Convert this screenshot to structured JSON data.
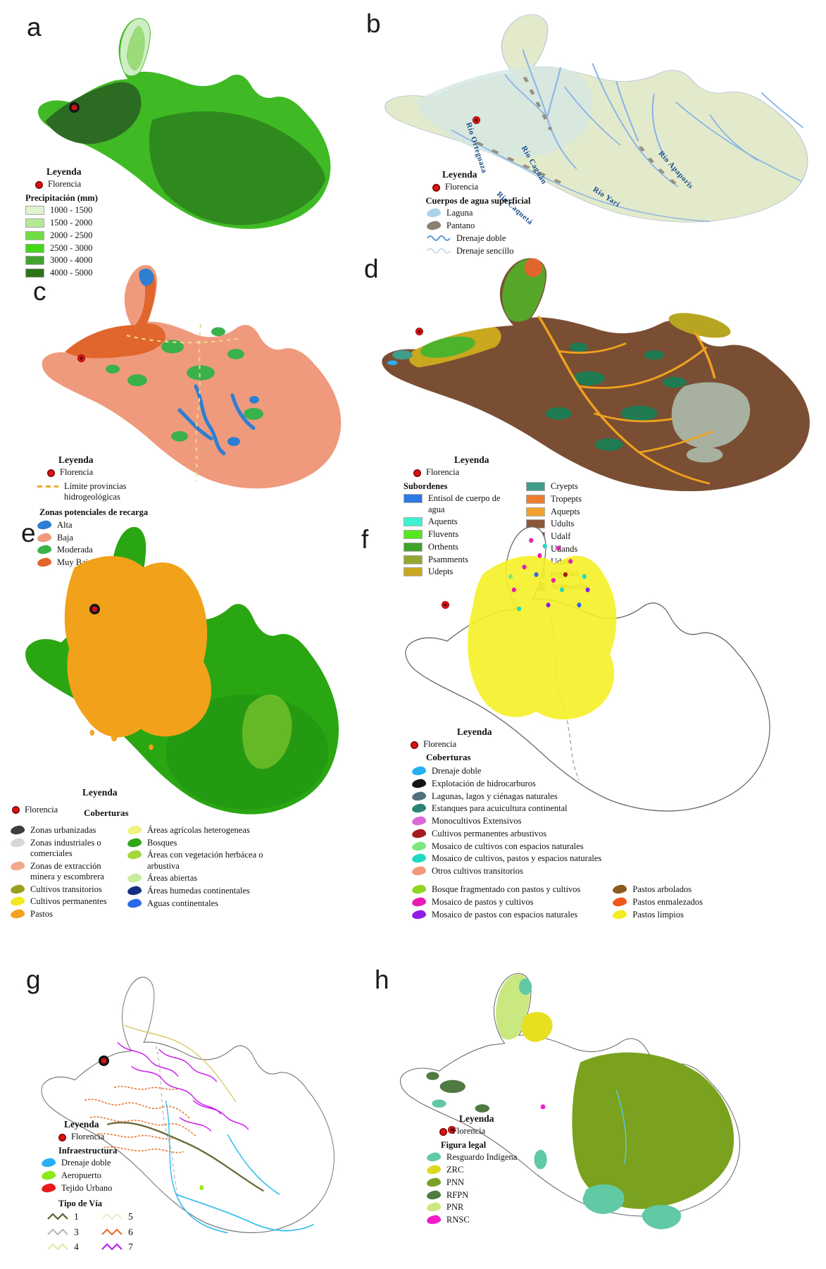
{
  "panels": [
    {
      "id": "a",
      "letter": "a",
      "topic": "precipitation",
      "legend": {
        "title": "Leyenda",
        "marker_label": "Florencia",
        "rows": [
          {
            "blocks": [
              {
                "title": "Precipitación (mm)",
                "items": [
                  {
                    "label": "1000 - 1500",
                    "color": "#def2cd",
                    "swatch": "rect"
                  },
                  {
                    "label": "1500 - 2000",
                    "color": "#b5e894",
                    "swatch": "rect"
                  },
                  {
                    "label": "2000 - 2500",
                    "color": "#6ede44",
                    "swatch": "rect"
                  },
                  {
                    "label": "2500 - 3000",
                    "color": "#44d619",
                    "swatch": "rect"
                  },
                  {
                    "label": "3000 - 4000",
                    "color": "#44a32e",
                    "swatch": "rect"
                  },
                  {
                    "label": "4000 - 5000",
                    "color": "#2d7218",
                    "swatch": "rect"
                  }
                ]
              }
            ]
          }
        ]
      }
    },
    {
      "id": "b",
      "letter": "b",
      "topic": "surface-water",
      "map_labels": [
        "Río Orteguaza",
        "Río Caguán",
        "Río Caquetá",
        "Río Yarí",
        "Río Apaporis"
      ],
      "legend": {
        "title": "Leyenda",
        "marker_label": "Florencia",
        "rows": [
          {
            "blocks": [
              {
                "title": "Cuerpos de agua superficial",
                "items": [
                  {
                    "label": "Laguna",
                    "color": "#abd3ea",
                    "swatch": "blob"
                  },
                  {
                    "label": "Pantano",
                    "color": "#8b8170",
                    "swatch": "blob"
                  },
                  {
                    "label": "Drenaje doble",
                    "color": "#5a95d6",
                    "swatch": "wavy"
                  },
                  {
                    "label": "Drenaje sencillo",
                    "color": "#c9dced",
                    "swatch": "wavy"
                  }
                ]
              }
            ]
          }
        ]
      }
    },
    {
      "id": "c",
      "letter": "c",
      "topic": "recharge-zones",
      "legend": {
        "title": "Leyenda",
        "marker_label": "Florencia",
        "rows": [
          {
            "blocks": [
              {
                "title": "",
                "items": [
                  {
                    "label": "Límite provincias hidrogeológicas",
                    "color": "#f0a830",
                    "swatch": "dashed"
                  }
                ]
              }
            ]
          },
          {
            "blocks": [
              {
                "title": "Zonas potenciales de recarga",
                "items": [
                  {
                    "label": "Alta",
                    "color": "#2e7fd2",
                    "swatch": "blob"
                  },
                  {
                    "label": "Baja",
                    "color": "#f2997c",
                    "swatch": "blob"
                  },
                  {
                    "label": "Moderada",
                    "color": "#3bb14c",
                    "swatch": "blob"
                  },
                  {
                    "label": "Muy Baja",
                    "color": "#e2662c",
                    "swatch": "blob"
                  }
                ]
              }
            ]
          }
        ]
      }
    },
    {
      "id": "d",
      "letter": "d",
      "topic": "soil-suborders",
      "legend": {
        "title": "Leyenda",
        "marker_label": "Florencia",
        "rows": [
          {
            "blocks": [
              {
                "title": "Subordenes",
                "items": [
                  {
                    "label": "Entisol de cuerpo de agua",
                    "color": "#2e7ae2",
                    "swatch": "rect"
                  },
                  {
                    "label": "Aquents",
                    "color": "#3df2cf",
                    "swatch": "rect"
                  },
                  {
                    "label": "Fluvents",
                    "color": "#55e822",
                    "swatch": "rect"
                  },
                  {
                    "label": "Orthents",
                    "color": "#3da32c",
                    "swatch": "rect"
                  },
                  {
                    "label": "Psamments",
                    "color": "#93a832",
                    "swatch": "rect"
                  },
                  {
                    "label": "Udepts",
                    "color": "#c9a81f",
                    "swatch": "rect"
                  }
                ]
              },
              {
                "title": "",
                "items": [
                  {
                    "label": "Cryepts",
                    "color": "#3f9e8a",
                    "swatch": "rect"
                  },
                  {
                    "label": "Tropepts",
                    "color": "#ec7c2e",
                    "swatch": "rect"
                  },
                  {
                    "label": "Aquepts",
                    "color": "#f2a22e",
                    "swatch": "rect"
                  },
                  {
                    "label": "Udults",
                    "color": "#8a573a",
                    "swatch": "rect"
                  },
                  {
                    "label": "Udalf",
                    "color": "#c2187f",
                    "swatch": "rect"
                  },
                  {
                    "label": "Udands",
                    "color": "#454542",
                    "swatch": "rect"
                  },
                  {
                    "label": "Udox",
                    "color": "#1f7a52",
                    "swatch": "rect"
                  },
                  {
                    "label": "regolito",
                    "color": "#b8bfb0",
                    "swatch": "rect"
                  },
                  {
                    "label": "Antrosoles",
                    "color": "#9e9e9e",
                    "swatch": "rect"
                  }
                ]
              }
            ]
          }
        ]
      }
    },
    {
      "id": "e",
      "letter": "e",
      "topic": "land-cover",
      "legend": {
        "title": "Leyenda",
        "marker_label": "Florencia",
        "subtitle": "Coberturas",
        "rows": [
          {
            "blocks": [
              {
                "items": [
                  {
                    "label": "Zonas urbanizadas",
                    "color": "#3d3d3d",
                    "swatch": "blob"
                  },
                  {
                    "label": "Zonas industriales o comerciales",
                    "color": "#d6d6d6",
                    "swatch": "blob"
                  },
                  {
                    "label": "Zonas de extracción minera y escombrera",
                    "color": "#f2a98c",
                    "swatch": "blob"
                  },
                  {
                    "label": "Cultivos transitorios",
                    "color": "#99a01e",
                    "swatch": "blob"
                  },
                  {
                    "label": "Cultivos permanentes",
                    "color": "#f2e81f",
                    "swatch": "blob"
                  },
                  {
                    "label": "Pastos",
                    "color": "#f2a21e",
                    "swatch": "blob"
                  }
                ]
              },
              {
                "items": [
                  {
                    "label": "Áreas agrícolas heterogeneas",
                    "color": "#f2f280",
                    "swatch": "blob"
                  },
                  {
                    "label": "Bosques",
                    "color": "#2fa816",
                    "swatch": "blob"
                  },
                  {
                    "label": "Áreas con vegetación herbácea o arbustiva",
                    "color": "#a5d63c",
                    "swatch": "blob"
                  },
                  {
                    "label": "Áreas abiertas",
                    "color": "#c6ec9c",
                    "swatch": "blob"
                  },
                  {
                    "label": "Áreas humedas continentales",
                    "color": "#132f7f",
                    "swatch": "blob"
                  },
                  {
                    "label": "Aguas continentales",
                    "color": "#2a6ae8",
                    "swatch": "blob"
                  }
                ]
              }
            ]
          }
        ]
      }
    },
    {
      "id": "f",
      "letter": "f",
      "topic": "land-cover-detail",
      "legend": {
        "title": "Leyenda",
        "marker_label": "Florencia",
        "subtitle": "Coberturas",
        "rows": [
          {
            "blocks": [
              {
                "items": [
                  {
                    "label": "Drenaje doble",
                    "color": "#29b0f2",
                    "swatch": "blob"
                  },
                  {
                    "label": "Explotación de hidrocarburos",
                    "color": "#141414",
                    "swatch": "blob"
                  },
                  {
                    "label": "Lagunas, lagos y ciénagas naturales",
                    "color": "#51707f",
                    "swatch": "blob"
                  },
                  {
                    "label": "Estanques para acuicultura continental",
                    "color": "#2b8577",
                    "swatch": "blob"
                  },
                  {
                    "label": "Monocultivos Extensivos",
                    "color": "#d96ad9",
                    "swatch": "blob"
                  },
                  {
                    "label": "Cultivos permanentes arbustivos",
                    "color": "#a51c1c",
                    "swatch": "blob"
                  },
                  {
                    "label": "Mosaico de cultivos con espacios naturales",
                    "color": "#7de87d",
                    "swatch": "blob"
                  },
                  {
                    "label": "Mosaico de cultivos, pastos y espacios naturales",
                    "color": "#1fd9c2",
                    "swatch": "blob"
                  },
                  {
                    "label": "Otros cultivos transitorios",
                    "color": "#f2997c",
                    "swatch": "blob"
                  }
                ]
              }
            ]
          },
          {
            "blocks": [
              {
                "items": [
                  {
                    "label": "Bosque fragmentado con pastos y cultivos",
                    "color": "#8cd61f",
                    "swatch": "blob"
                  },
                  {
                    "label": "Mosaico de pastos y cultivos",
                    "color": "#e81cb0",
                    "swatch": "blob"
                  },
                  {
                    "label": "Mosaico de pastos con espacios naturales",
                    "color": "#8f1ce8",
                    "swatch": "blob"
                  }
                ]
              },
              {
                "items": [
                  {
                    "label": "Pastos arbolados",
                    "color": "#8a5a1e",
                    "swatch": "blob"
                  },
                  {
                    "label": "Pastos enmalezados",
                    "color": "#f0571e",
                    "swatch": "blob"
                  },
                  {
                    "label": "Pastos limpios",
                    "color": "#f2ed1f",
                    "swatch": "blob"
                  }
                ]
              }
            ]
          }
        ]
      }
    },
    {
      "id": "g",
      "letter": "g",
      "topic": "infrastructure",
      "legend": {
        "title": "Leyenda",
        "marker_label": "Florencia",
        "rows": [
          {
            "blocks": [
              {
                "title": "Infraestructura",
                "items": [
                  {
                    "label": "Drenaje doble",
                    "color": "#29b0f2",
                    "swatch": "blob"
                  },
                  {
                    "label": "Aeropuerto",
                    "color": "#8ce819",
                    "swatch": "blob"
                  },
                  {
                    "label": "Tejido Urbano",
                    "color": "#e81c1c",
                    "swatch": "blob"
                  }
                ]
              }
            ]
          },
          {
            "blocks": [
              {
                "title": "Tipo de Vía",
                "grid": true,
                "items": [
                  {
                    "label": "1",
                    "color": "#5a5f2e",
                    "swatch": "zigzag"
                  },
                  {
                    "label": "5",
                    "color": "#f0e9cd",
                    "swatch": "zigzag"
                  },
                  {
                    "label": "3",
                    "color": "#b3bdb3",
                    "swatch": "zigzag"
                  },
                  {
                    "label": "6",
                    "color": "#e8742e",
                    "swatch": "zigzag"
                  },
                  {
                    "label": "4",
                    "color": "#e5e5a8",
                    "swatch": "zigzag"
                  },
                  {
                    "label": "7",
                    "color": "#bb22ee",
                    "swatch": "zigzag"
                  }
                ]
              }
            ]
          }
        ]
      }
    },
    {
      "id": "h",
      "letter": "h",
      "topic": "legal-figures",
      "legend": {
        "title": "Leyenda",
        "marker_label": "Florencia",
        "rows": [
          {
            "blocks": [
              {
                "title": "Figura legal",
                "items": [
                  {
                    "label": "Resguardo Indígena",
                    "color": "#62c9a5",
                    "swatch": "blob"
                  },
                  {
                    "label": "ZRC",
                    "color": "#ddd820",
                    "swatch": "blob"
                  },
                  {
                    "label": "PNN",
                    "color": "#7ba224",
                    "swatch": "blob"
                  },
                  {
                    "label": "RFPN",
                    "color": "#4f7a42",
                    "swatch": "blob"
                  },
                  {
                    "label": "PNR",
                    "color": "#c9e87f",
                    "swatch": "blob"
                  },
                  {
                    "label": "RNSC",
                    "color": "#f21cc9",
                    "swatch": "blob"
                  }
                ]
              }
            ]
          }
        ]
      }
    }
  ]
}
